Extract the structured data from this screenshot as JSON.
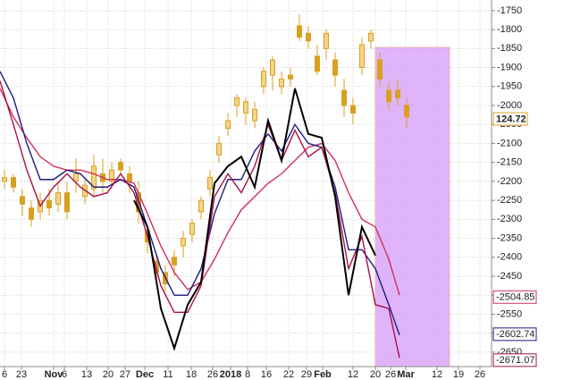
{
  "chart_data": {
    "type": "candlestick",
    "price_tag": "124.72",
    "xlim": [
      -1,
      109
    ],
    "ylim": [
      -2688,
      -1722
    ],
    "grid": true,
    "yticks": [
      -1750,
      -1800,
      -1850,
      -1900,
      -1950,
      -2000,
      -2050,
      -2100,
      -2150,
      -2200,
      -2250,
      -2300,
      -2350,
      -2400,
      -2450,
      -2500,
      -2550,
      -2600,
      -2650
    ],
    "xticks": [
      {
        "value": 0,
        "label": "6"
      },
      {
        "value": 3.8,
        "label": "23"
      },
      {
        "value": 11,
        "label": "Nov"
      },
      {
        "value": 13.4,
        "label": "6"
      },
      {
        "value": 18.4,
        "label": "13"
      },
      {
        "value": 23.2,
        "label": "20"
      },
      {
        "value": 27,
        "label": "27"
      },
      {
        "value": 31.4,
        "label": "Dec"
      },
      {
        "value": 36.6,
        "label": "11"
      },
      {
        "value": 41.8,
        "label": "18"
      },
      {
        "value": 46.6,
        "label": "26"
      },
      {
        "value": 50.6,
        "label": "2018"
      },
      {
        "value": 54.4,
        "label": "8"
      },
      {
        "value": 58.6,
        "label": "16"
      },
      {
        "value": 63.6,
        "label": "22"
      },
      {
        "value": 67.6,
        "label": "29"
      },
      {
        "value": 71.2,
        "label": "Feb"
      },
      {
        "value": 78,
        "label": "12"
      },
      {
        "value": 83,
        "label": "20"
      },
      {
        "value": 86.4,
        "label": "26"
      },
      {
        "value": 89.8,
        "label": "Mar"
      },
      {
        "value": 96.8,
        "label": "12"
      },
      {
        "value": 101.6,
        "label": "19"
      },
      {
        "value": 106.4,
        "label": "26"
      }
    ],
    "candles": {
      "color": "#d9a020",
      "x": [
        0,
        2,
        4,
        6,
        8,
        10,
        12,
        14,
        16,
        18,
        20,
        22,
        24,
        26,
        28,
        30,
        32,
        34,
        36,
        38,
        40,
        42,
        44,
        46,
        48,
        50,
        52,
        54,
        56,
        58,
        60,
        62,
        64,
        66,
        68,
        70,
        72,
        74,
        76,
        78,
        80,
        82,
        84,
        86,
        88,
        90
      ],
      "open": [
        -2200,
        -2190,
        -2240,
        -2270,
        -2280,
        -2250,
        -2260,
        -2230,
        -2200,
        -2240,
        -2220,
        -2180,
        -2200,
        -2150,
        -2180,
        -2230,
        -2330,
        -2410,
        -2440,
        -2400,
        -2370,
        -2340,
        -2280,
        -2220,
        -2130,
        -2060,
        -2000,
        -2020,
        -2040,
        -1950,
        -1920,
        -1950,
        -1920,
        -1790,
        -1810,
        -1870,
        -1850,
        -1880,
        -1960,
        -2000,
        -1900,
        -1830,
        -1880,
        -1960,
        -1960,
        -2000
      ],
      "high": [
        -2170,
        -2180,
        -2220,
        -2250,
        -2230,
        -2220,
        -2200,
        -2200,
        -2140,
        -2190,
        -2130,
        -2140,
        -2150,
        -2140,
        -2160,
        -2200,
        -2320,
        -2390,
        -2420,
        -2380,
        -2330,
        -2300,
        -2240,
        -2170,
        -2080,
        -2020,
        -1970,
        -1980,
        -1990,
        -1900,
        -1870,
        -1910,
        -1900,
        -1760,
        -1790,
        -1840,
        -1800,
        -1860,
        -1930,
        -1980,
        -1820,
        -1800,
        -1860,
        -1940,
        -1930,
        -1980
      ],
      "low": [
        -2220,
        -2230,
        -2290,
        -2320,
        -2300,
        -2290,
        -2280,
        -2300,
        -2230,
        -2260,
        -2240,
        -2230,
        -2220,
        -2180,
        -2230,
        -2310,
        -2390,
        -2460,
        -2490,
        -2450,
        -2400,
        -2360,
        -2300,
        -2240,
        -2150,
        -2080,
        -2030,
        -2050,
        -2060,
        -1970,
        -1960,
        -1970,
        -1950,
        -1830,
        -1850,
        -1920,
        -1880,
        -1950,
        -2030,
        -2050,
        -1920,
        -1850,
        -1950,
        -2010,
        -2000,
        -2060
      ],
      "close": [
        -2190,
        -2215,
        -2260,
        -2300,
        -2250,
        -2270,
        -2230,
        -2280,
        -2180,
        -2210,
        -2160,
        -2200,
        -2170,
        -2170,
        -2200,
        -2280,
        -2360,
        -2440,
        -2470,
        -2420,
        -2350,
        -2310,
        -2250,
        -2190,
        -2100,
        -2040,
        -1980,
        -1990,
        -2010,
        -1910,
        -1880,
        -1930,
        -1930,
        -1820,
        -1830,
        -1910,
        -1810,
        -1920,
        -2000,
        -2020,
        -1840,
        -1810,
        -1930,
        -1990,
        -1980,
        -2030
      ]
    },
    "x": [
      -1,
      2,
      5,
      8,
      11,
      14,
      17,
      20,
      23,
      26,
      29,
      32,
      35,
      38,
      41,
      44,
      47,
      50,
      53,
      56,
      59,
      62,
      65,
      68,
      71,
      74,
      77,
      80,
      83,
      86,
      88.4
    ],
    "series": [
      {
        "color": "#d0305a",
        "last_value": -2504.85,
        "values": [
          -1955,
          -2030,
          -2085,
          -2135,
          -2160,
          -2170,
          -2170,
          -2180,
          -2195,
          -2195,
          -2205,
          -2285,
          -2370,
          -2440,
          -2485,
          -2465,
          -2405,
          -2335,
          -2275,
          -2240,
          -2205,
          -2180,
          -2145,
          -2110,
          -2100,
          -2145,
          -2230,
          -2300,
          -2320,
          -2405,
          -2500
        ]
      },
      {
        "color": "#1c1c80",
        "last_value": -2602.74,
        "values": [
          -1910,
          -1980,
          -2100,
          -2195,
          -2195,
          -2170,
          -2180,
          -2215,
          -2215,
          -2195,
          -2215,
          -2320,
          -2430,
          -2500,
          -2500,
          -2430,
          -2285,
          -2195,
          -2195,
          -2120,
          -2075,
          -2120,
          -2050,
          -2100,
          -2110,
          -2215,
          -2380,
          -2380,
          -2430,
          -2525,
          -2605
        ]
      },
      {
        "color": "#a8104a",
        "last_value": -2671.07,
        "values": [
          -1935,
          -2050,
          -2170,
          -2265,
          -2215,
          -2180,
          -2215,
          -2240,
          -2230,
          -2180,
          -2230,
          -2345,
          -2475,
          -2545,
          -2545,
          -2475,
          -2240,
          -2180,
          -2230,
          -2160,
          -2050,
          -2145,
          -2065,
          -2135,
          -2110,
          -2230,
          -2430,
          -2345,
          -2525,
          -2535,
          -2665
        ]
      },
      {
        "color": "#000000",
        "values": [
          null,
          null,
          null,
          null,
          null,
          null,
          null,
          null,
          null,
          null,
          -2250,
          -2320,
          -2535,
          -2640,
          -2525,
          -2465,
          -2205,
          -2160,
          -2135,
          -2215,
          -2040,
          -2145,
          -1955,
          -2075,
          -2085,
          -2240,
          -2500,
          -2320,
          -2395,
          null,
          null
        ]
      }
    ]
  }
}
